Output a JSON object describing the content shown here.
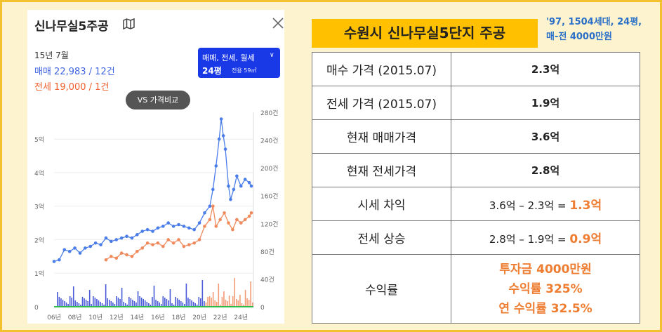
{
  "app": {
    "title": "신나무실5주공",
    "month": "15년 7월",
    "sale_line": "매매 22,983 / 12건",
    "jeonse_line": "전세 19,000 / 1건",
    "filter_top": "매매, 전세, 월세",
    "filter_size": "24평",
    "filter_area": "전용 59㎡",
    "vs_button": "VS 가격비교"
  },
  "chart_data": {
    "type": "line",
    "y_left_ticks": [
      "0",
      "1억",
      "2억",
      "3억",
      "4억",
      "5억"
    ],
    "y_right_ticks": [
      "0",
      "40건",
      "80건",
      "120건",
      "160건",
      "200건",
      "240건",
      "280건"
    ],
    "x_ticks": [
      "06년",
      "08년",
      "10년",
      "12년",
      "14년",
      "16년",
      "18년",
      "20년",
      "22년",
      "24년"
    ],
    "xlim": [
      2006,
      2025.2
    ],
    "ylim_left": [
      0,
      5.8
    ],
    "series": [
      {
        "name": "매매",
        "color": "#4a7de8",
        "x": [
          2006.0,
          2006.5,
          2007.0,
          2007.5,
          2008.0,
          2008.5,
          2009.0,
          2009.5,
          2010.0,
          2010.5,
          2011.0,
          2011.5,
          2012.0,
          2012.5,
          2013.0,
          2013.5,
          2014.0,
          2014.5,
          2015.0,
          2015.5,
          2016.0,
          2016.5,
          2017.0,
          2017.5,
          2018.0,
          2018.5,
          2019.0,
          2019.5,
          2020.0,
          2020.5,
          2021.0,
          2021.3,
          2021.6,
          2021.9,
          2022.1,
          2022.3,
          2022.5,
          2022.8,
          2023.0,
          2023.3,
          2023.6,
          2024.0,
          2024.4,
          2024.8,
          2025.0
        ],
        "values": [
          1.35,
          1.4,
          1.7,
          1.65,
          1.75,
          1.6,
          1.75,
          1.8,
          1.9,
          1.85,
          2.05,
          1.95,
          2.0,
          2.05,
          2.1,
          2.05,
          2.15,
          2.25,
          2.3,
          2.25,
          2.35,
          2.4,
          2.5,
          2.4,
          2.45,
          2.4,
          2.35,
          2.3,
          2.5,
          2.8,
          3.0,
          3.5,
          4.2,
          5.0,
          5.6,
          5.1,
          4.7,
          3.6,
          3.2,
          3.5,
          3.9,
          3.6,
          3.8,
          3.7,
          3.6
        ]
      },
      {
        "name": "전세",
        "color": "#f08a5d",
        "x": [
          2011.0,
          2011.5,
          2012.0,
          2012.5,
          2013.0,
          2013.5,
          2014.0,
          2014.5,
          2015.0,
          2015.5,
          2016.0,
          2016.5,
          2017.0,
          2017.5,
          2018.0,
          2018.5,
          2019.0,
          2019.5,
          2020.0,
          2020.5,
          2021.0,
          2021.3,
          2021.6,
          2022.0,
          2022.4,
          2022.8,
          2023.2,
          2023.6,
          2024.0,
          2024.4,
          2024.8,
          2025.0
        ],
        "values": [
          1.4,
          1.5,
          1.45,
          1.6,
          1.55,
          1.5,
          1.65,
          1.75,
          1.9,
          1.85,
          1.9,
          1.8,
          2.0,
          1.9,
          2.0,
          1.8,
          1.85,
          1.9,
          2.0,
          2.4,
          2.6,
          3.0,
          2.4,
          2.6,
          2.8,
          2.5,
          2.3,
          2.6,
          2.5,
          2.6,
          2.7,
          2.8
        ]
      }
    ]
  },
  "right": {
    "title": "수원시 신나무실5단지 주공",
    "sub1": "'97, 1504세대, 24평,",
    "sub2": "매-전 4000만원"
  },
  "table": {
    "r1_k": "매수 가격 (2015.07)",
    "r1_v": "2.3억",
    "r2_k": "전세 가격 (2015.07)",
    "r2_v": "1.9억",
    "r3_k": "현재 매매가격",
    "r3_v": "3.6억",
    "r4_k": "현재 전세가격",
    "r4_v": "2.8억",
    "r5_k": "시세 차익",
    "r5_expr": "3.6억 – 2.3억 = ",
    "r5_res": "1.3억",
    "r6_k": "전세 상승",
    "r6_expr": "2.8억 – 1.9억 = ",
    "r6_res": "0.9억",
    "r7_k": "수익률",
    "r7_l1": "투자금 4000만원",
    "r7_l2": "수익률 325%",
    "r7_l3": "연 수익률 32.5%"
  }
}
